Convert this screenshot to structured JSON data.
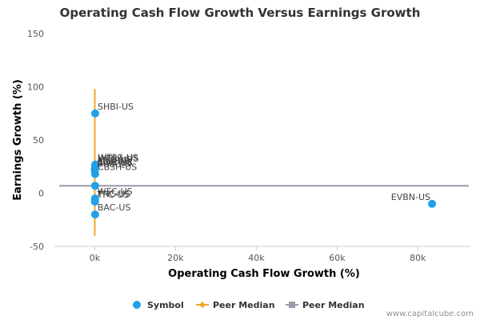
{
  "chart_data": {
    "type": "scatter",
    "title": "Operating Cash Flow Growth Versus Earnings Growth",
    "xlabel": "Operating Cash Flow Growth (%)",
    "ylabel": "Earnings Growth (%)",
    "xlim": [
      -10000,
      93000
    ],
    "ylim": [
      -50,
      150
    ],
    "x_ticks": [
      0,
      20000,
      40000,
      60000,
      80000
    ],
    "x_tick_labels": [
      "0k",
      "20k",
      "40k",
      "60k",
      "80k"
    ],
    "y_ticks": [
      -50,
      0,
      50,
      100,
      150
    ],
    "y_tick_labels": [
      "-50",
      "0",
      "50",
      "100",
      "150"
    ],
    "grid": false,
    "legend_position": "bottom",
    "colors": {
      "symbol": "#1ea1e8",
      "peer_median_x": "#f0a830",
      "peer_median_y": "#9a9aa8"
    },
    "peer_median_x_line": {
      "x": 0,
      "y_range": [
        -40,
        98
      ]
    },
    "peer_median_y_line": {
      "y": 7
    },
    "series": [
      {
        "name": "Symbol",
        "points": [
          {
            "label": "SHBI-US",
            "x": 100,
            "y": 75
          },
          {
            "label": "WTFC-US",
            "x": 150,
            "y": 27
          },
          {
            "label": "WTBA-US",
            "x": 120,
            "y": 26
          },
          {
            "label": "MTB-US",
            "x": 80,
            "y": 25
          },
          {
            "label": "FRC-US",
            "x": 60,
            "y": 24
          },
          {
            "label": "BOH-US",
            "x": 40,
            "y": 23
          },
          {
            "label": "SIVB-US",
            "x": 0,
            "y": 22
          },
          {
            "label": "BKU-US",
            "x": 30,
            "y": 21
          },
          {
            "label": "CBSH-US",
            "x": 90,
            "y": 18
          },
          {
            "label": "",
            "x": 70,
            "y": 7
          },
          {
            "label": "WFC-US",
            "x": 60,
            "y": -5
          },
          {
            "label": "PNC-US",
            "x": 50,
            "y": -7
          },
          {
            "label": "TFC-US",
            "x": 40,
            "y": -8
          },
          {
            "label": "BAC-US",
            "x": 80,
            "y": -20
          },
          {
            "label": "EVBN-US",
            "x": 83500,
            "y": -10
          }
        ]
      }
    ],
    "legend": [
      "Symbol",
      "Peer Median",
      "Peer Median"
    ]
  },
  "credit": "www.capitalcube.com"
}
